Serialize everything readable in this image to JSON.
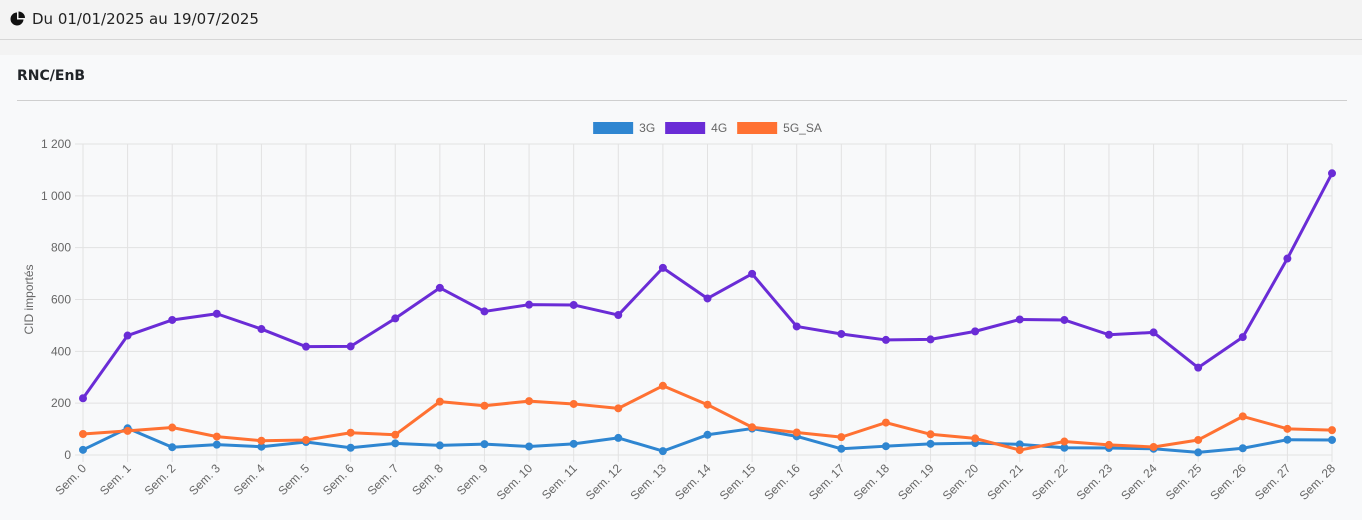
{
  "header": {
    "date_range": "Du 01/01/2025 au 19/07/2025",
    "icon": "pie-chart-icon"
  },
  "panel": {
    "title": "RNC/EnB"
  },
  "chart_data": {
    "type": "line",
    "title": "",
    "xlabel": "",
    "ylabel": "CID importés",
    "ylim": [
      0,
      1200
    ],
    "yticks": [
      0,
      200,
      400,
      600,
      800,
      1000,
      1200
    ],
    "ytick_labels": [
      "0",
      "200",
      "400",
      "600",
      "800",
      "1 000",
      "1 200"
    ],
    "grid": true,
    "legend_position": "top",
    "categories": [
      "Sem. 0",
      "Sem. 1",
      "Sem. 2",
      "Sem. 3",
      "Sem. 4",
      "Sem. 5",
      "Sem. 6",
      "Sem. 7",
      "Sem. 8",
      "Sem. 9",
      "Sem. 10",
      "Sem. 11",
      "Sem. 12",
      "Sem. 13",
      "Sem. 14",
      "Sem. 15",
      "Sem. 16",
      "Sem. 17",
      "Sem. 18",
      "Sem. 19",
      "Sem. 20",
      "Sem. 21",
      "Sem. 22",
      "Sem. 23",
      "Sem. 24",
      "Sem. 25",
      "Sem. 26",
      "Sem. 27",
      "Sem. 28"
    ],
    "series": [
      {
        "name": "3G",
        "color": "#2f86d1",
        "values": [
          20,
          103,
          30,
          40,
          32,
          50,
          28,
          45,
          37,
          42,
          33,
          43,
          66,
          15,
          78,
          102,
          72,
          24,
          34,
          43,
          46,
          41,
          28,
          27,
          24,
          10,
          26,
          59,
          58
        ]
      },
      {
        "name": "4G",
        "color": "#6a2cd6",
        "values": [
          219,
          461,
          521,
          545,
          486,
          418,
          419,
          527,
          645,
          554,
          580,
          579,
          540,
          722,
          604,
          699,
          496,
          467,
          444,
          446,
          477,
          523,
          521,
          464,
          473,
          337,
          455,
          758,
          1087
        ]
      },
      {
        "name": "5G_SA",
        "color": "#ff7132",
        "values": [
          81,
          93,
          106,
          71,
          55,
          58,
          86,
          78,
          206,
          190,
          208,
          197,
          180,
          267,
          194,
          107,
          87,
          69,
          125,
          80,
          64,
          19,
          52,
          39,
          31,
          58,
          149,
          101,
          96
        ]
      }
    ]
  }
}
